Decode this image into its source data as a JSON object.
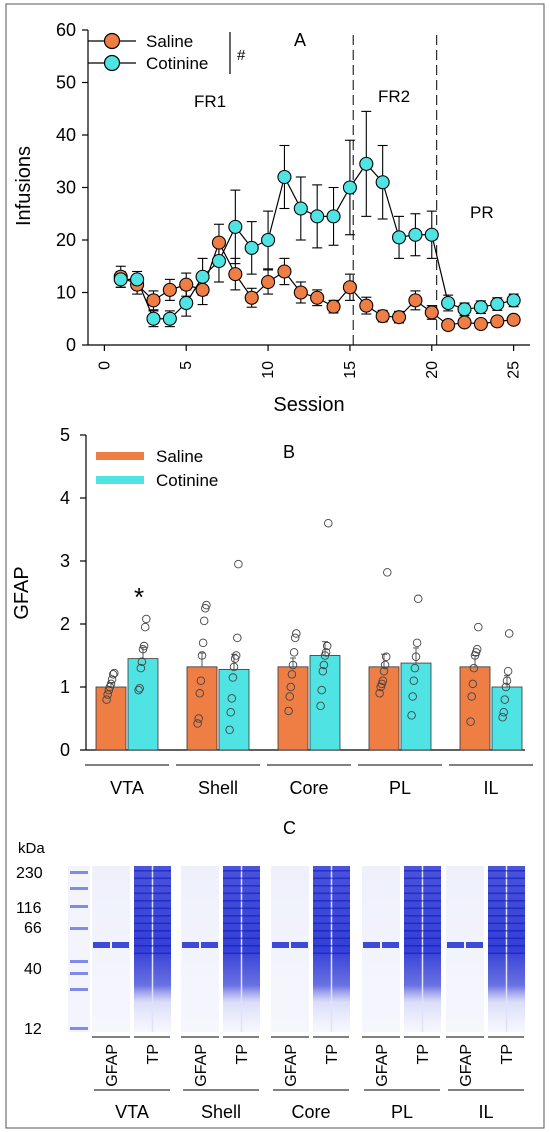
{
  "colors": {
    "saline": "#ef7e45",
    "cotinine": "#4fe3e3",
    "stroke": "#000000",
    "gel_band": "#1d2bd0"
  },
  "chart_data": [
    {
      "panel": "A",
      "type": "line",
      "xlabel": "Session",
      "ylabel": "Infusions",
      "xlim": [
        -1,
        26
      ],
      "ylim": [
        0,
        60
      ],
      "xticks": [
        0,
        5,
        10,
        15,
        20,
        25
      ],
      "yticks": [
        0,
        10,
        20,
        30,
        40,
        50,
        60
      ],
      "legend": {
        "position": "top-left",
        "significance": "#"
      },
      "phases": [
        {
          "label": "FR1",
          "boundary_after": 15.2
        },
        {
          "label": "FR2",
          "boundary_after": 20.3
        },
        {
          "label": "PR"
        }
      ],
      "x": [
        1,
        2,
        3,
        4,
        5,
        6,
        7,
        8,
        9,
        10,
        11,
        12,
        13,
        14,
        15,
        16,
        17,
        18,
        19,
        20,
        21,
        22,
        23,
        24,
        25
      ],
      "series": [
        {
          "name": "Saline",
          "values": [
            13,
            11.5,
            8.5,
            10.5,
            11.5,
            10.5,
            19.5,
            13.5,
            9,
            12,
            14,
            10,
            9,
            7.3,
            11,
            7.5,
            5.5,
            5.3,
            8.5,
            6.2,
            3.8,
            4.3,
            4,
            4.5,
            4.8
          ],
          "errors": [
            2,
            1.8,
            1.8,
            2,
            2.2,
            2.8,
            3.5,
            3,
            1.8,
            2.3,
            2.5,
            2,
            1.5,
            1.2,
            2.5,
            1.6,
            1.1,
            1.1,
            1.8,
            1.3,
            0.8,
            0.8,
            0.7,
            0.9,
            0.8
          ]
        },
        {
          "name": "Cotinine",
          "values": [
            12.5,
            12.5,
            5,
            5,
            8,
            13,
            16,
            22.5,
            18.5,
            20,
            32,
            26,
            24.5,
            24.5,
            30,
            34.5,
            31,
            20.5,
            21,
            21,
            8,
            6.8,
            7.2,
            7.8,
            8.5
          ],
          "errors": [
            1.5,
            1.5,
            1.5,
            1.5,
            2.5,
            3.5,
            4,
            7,
            5,
            5.5,
            6,
            6,
            6,
            5.5,
            9,
            10,
            7,
            4,
            4,
            4.5,
            1.5,
            1.2,
            1.2,
            1.2,
            1.2
          ]
        }
      ]
    },
    {
      "panel": "B",
      "type": "bar",
      "ylabel": "GFAP",
      "ylim": [
        0,
        5
      ],
      "yticks": [
        0,
        1,
        2,
        3,
        4,
        5
      ],
      "legend": {
        "position": "top-left"
      },
      "categories": [
        "VTA",
        "Shell",
        "Core",
        "PL",
        "IL"
      ],
      "significance": [
        {
          "category": "VTA",
          "series": "Cotinine",
          "mark": "*"
        }
      ],
      "series": [
        {
          "name": "Saline",
          "values": [
            1.0,
            1.32,
            1.32,
            1.32,
            1.32
          ],
          "errors": [
            0.07,
            0.22,
            0.14,
            0.2,
            0.18
          ],
          "points": [
            [
              0.8,
              0.88,
              0.95,
              1.0,
              1.05,
              1.12,
              1.2,
              1.22
            ],
            [
              0.42,
              0.5,
              0.9,
              1.1,
              1.5,
              1.7,
              2.05,
              2.25,
              2.3
            ],
            [
              0.62,
              0.85,
              1.0,
              1.2,
              1.35,
              1.55,
              1.78,
              1.85
            ],
            [
              0.9,
              1.0,
              1.05,
              1.1,
              1.25,
              1.35,
              1.48,
              2.82
            ],
            [
              0.45,
              0.85,
              1.05,
              1.3,
              1.5,
              1.55,
              1.6,
              1.95
            ]
          ]
        },
        {
          "name": "Cotinine",
          "values": [
            1.45,
            1.28,
            1.5,
            1.38,
            1.0
          ],
          "errors": [
            0.18,
            0.24,
            0.22,
            0.24,
            0.18
          ],
          "points": [
            [
              0.95,
              0.98,
              1.3,
              1.4,
              1.6,
              1.65,
              1.95,
              2.08
            ],
            [
              0.32,
              0.6,
              0.82,
              1.15,
              1.32,
              1.45,
              1.5,
              1.78,
              2.95
            ],
            [
              0.7,
              0.95,
              1.25,
              1.35,
              1.5,
              1.55,
              1.65,
              3.6
            ],
            [
              0.55,
              0.85,
              1.1,
              1.3,
              1.48,
              1.7,
              2.4
            ],
            [
              0.52,
              0.6,
              0.8,
              1.0,
              1.1,
              1.25,
              1.85
            ]
          ]
        }
      ]
    }
  ],
  "panel_a": {
    "label": "A",
    "legend": {
      "saline": "Saline",
      "cotinine": "Cotinine",
      "significance": "#"
    },
    "phases": [
      "FR1",
      "FR2",
      "PR"
    ]
  },
  "panel_b": {
    "label": "B",
    "significance_mark": "*",
    "legend": {
      "saline": "Saline",
      "cotinine": "Cotinine"
    }
  },
  "panel_c": {
    "label": "C",
    "unit": "kDa",
    "markers": [
      "230",
      "116",
      "66",
      "40",
      "12"
    ],
    "lane_labels": [
      "GFAP",
      "TP"
    ],
    "groups": [
      "VTA",
      "Shell",
      "Core",
      "PL",
      "IL"
    ]
  }
}
